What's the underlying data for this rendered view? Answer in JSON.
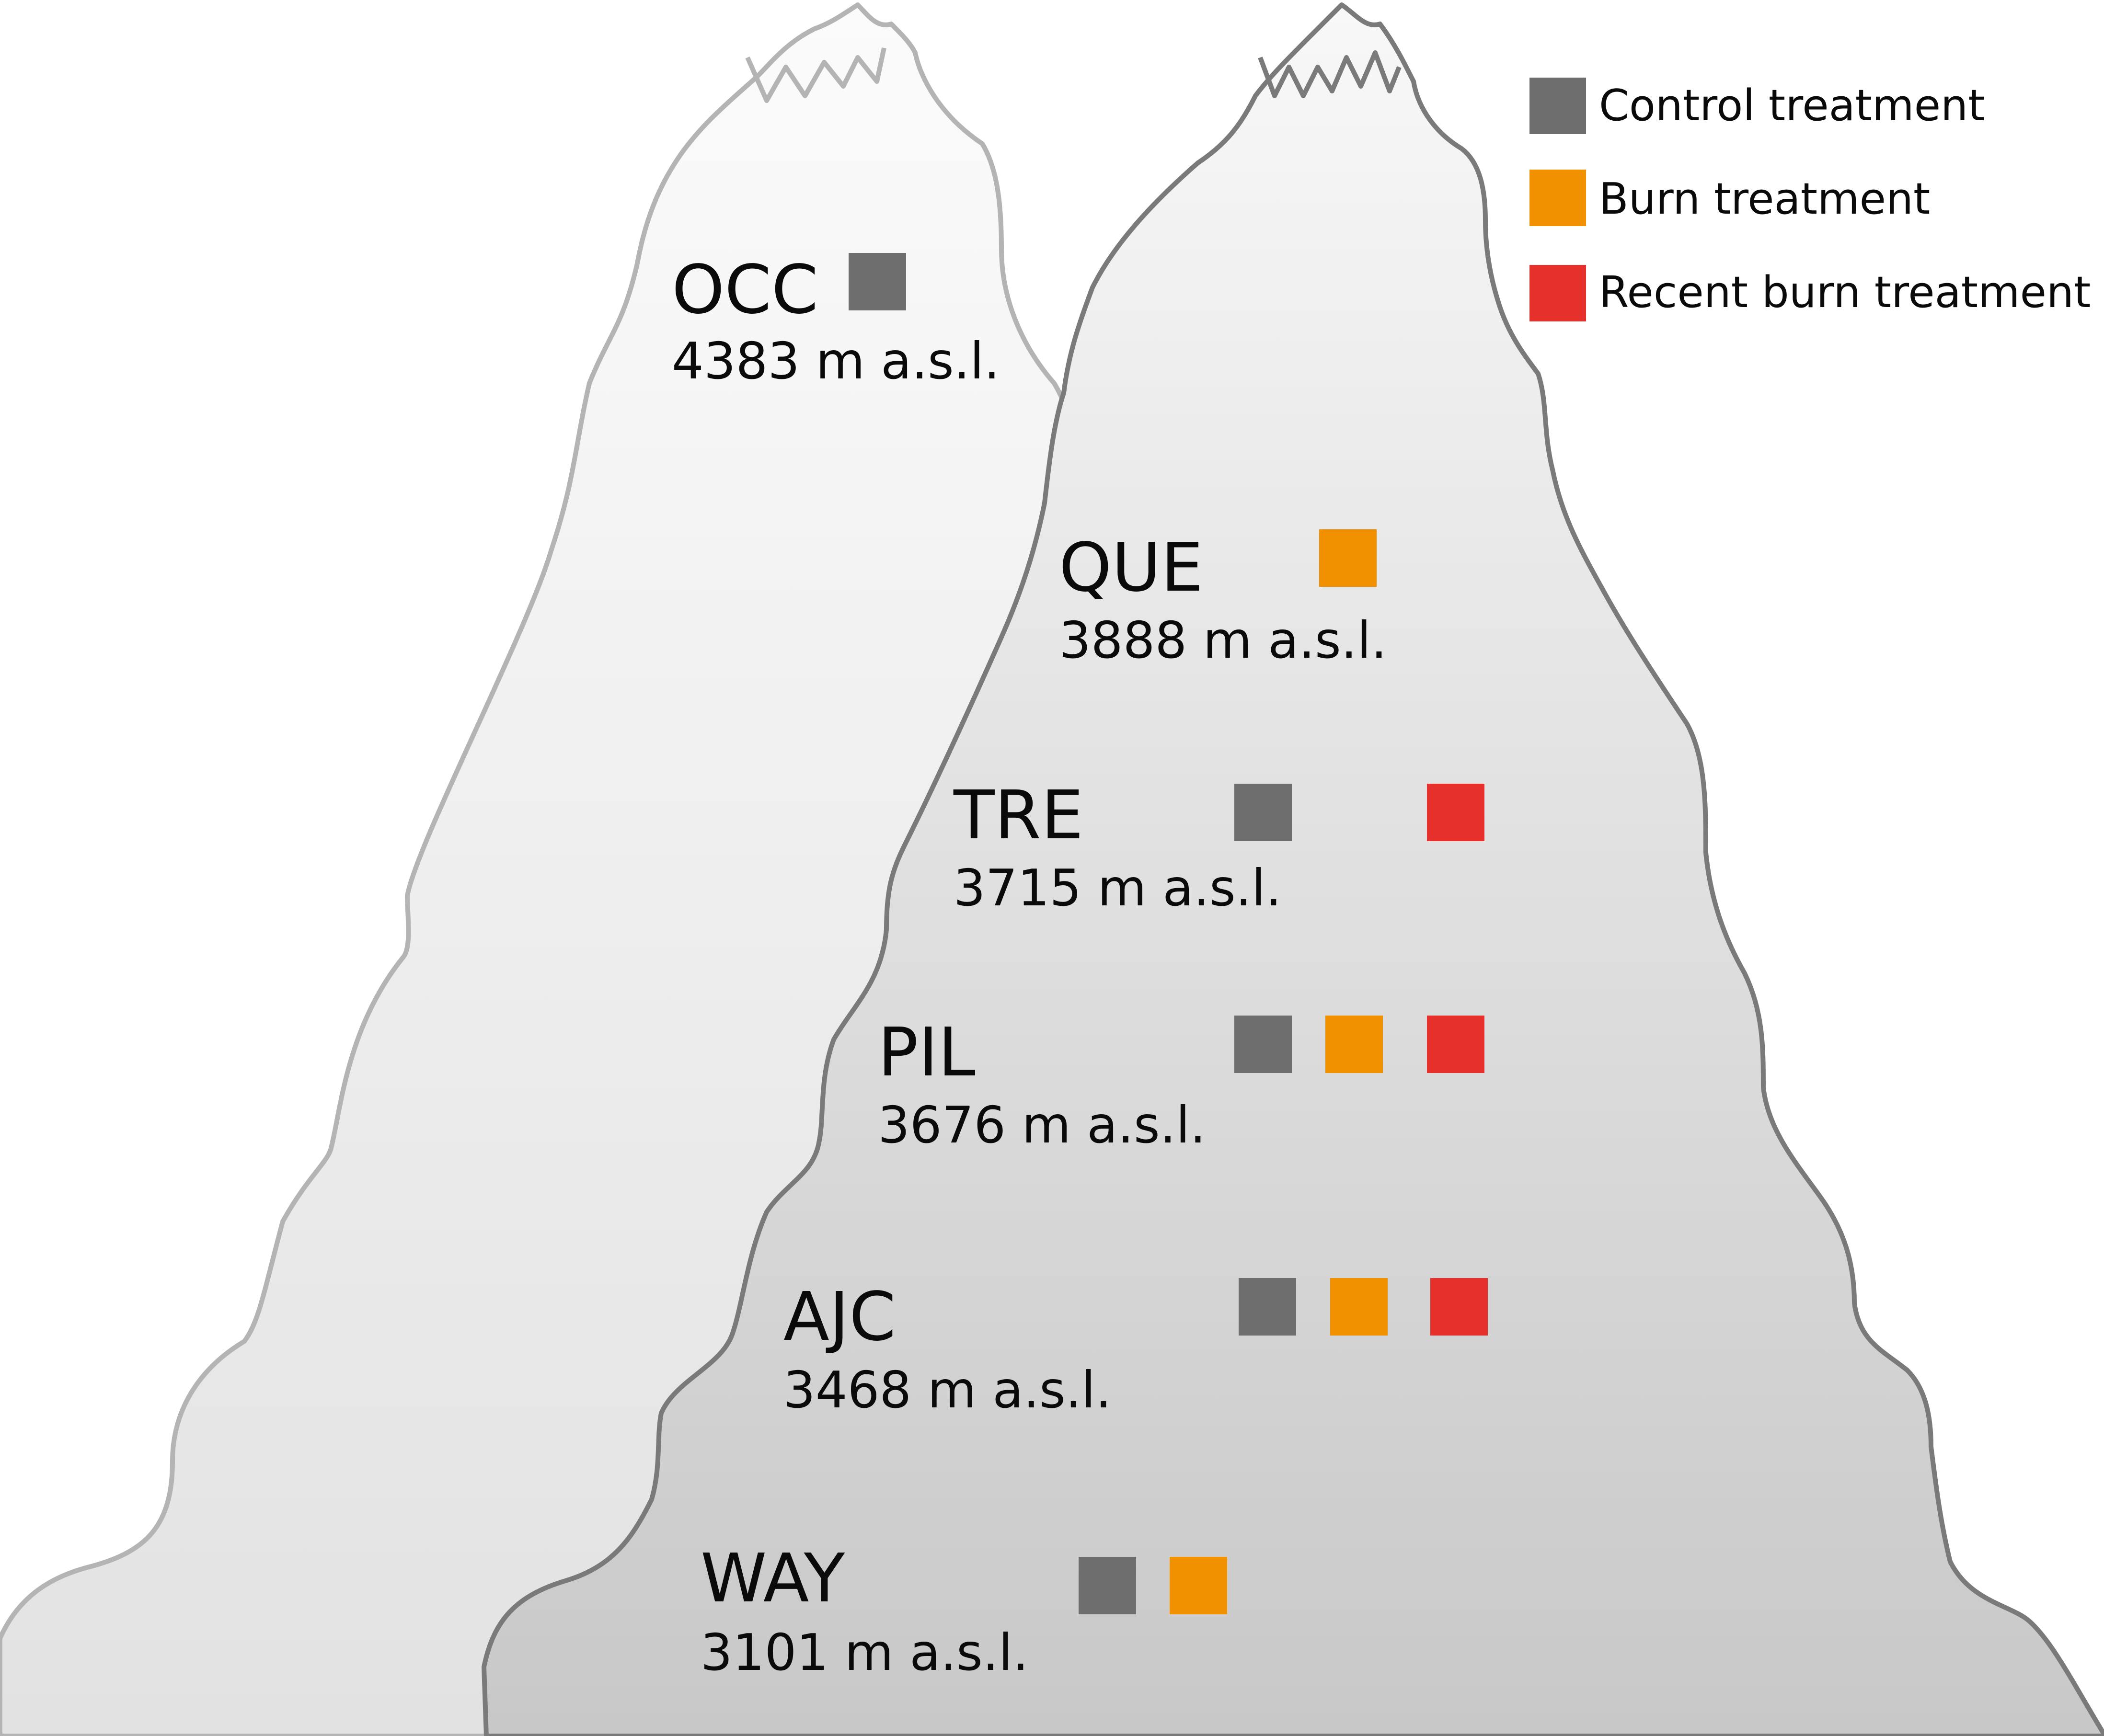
{
  "legend": [
    {
      "key": "control",
      "label": "Control treatment",
      "color": "#6e6e6e"
    },
    {
      "key": "burn",
      "label": "Burn treatment",
      "color": "#f29100"
    },
    {
      "key": "recent",
      "label": "Recent burn treatment",
      "color": "#e6302b"
    }
  ],
  "sites": [
    {
      "code": "OCC",
      "elevation": "4383 m a.s.l.",
      "treatments": [
        "control"
      ]
    },
    {
      "code": "QUE",
      "elevation": "3888 m a.s.l.",
      "treatments": [
        "burn"
      ]
    },
    {
      "code": "TRE",
      "elevation": "3715 m a.s.l.",
      "treatments": [
        "control",
        "recent"
      ]
    },
    {
      "code": "PIL",
      "elevation": "3676 m a.s.l.",
      "treatments": [
        "control",
        "burn",
        "recent"
      ]
    },
    {
      "code": "AJC",
      "elevation": "3468 m a.s.l.",
      "treatments": [
        "control",
        "burn",
        "recent"
      ]
    },
    {
      "code": "WAY",
      "elevation": "3101 m a.s.l.",
      "treatments": [
        "control",
        "burn"
      ]
    }
  ]
}
